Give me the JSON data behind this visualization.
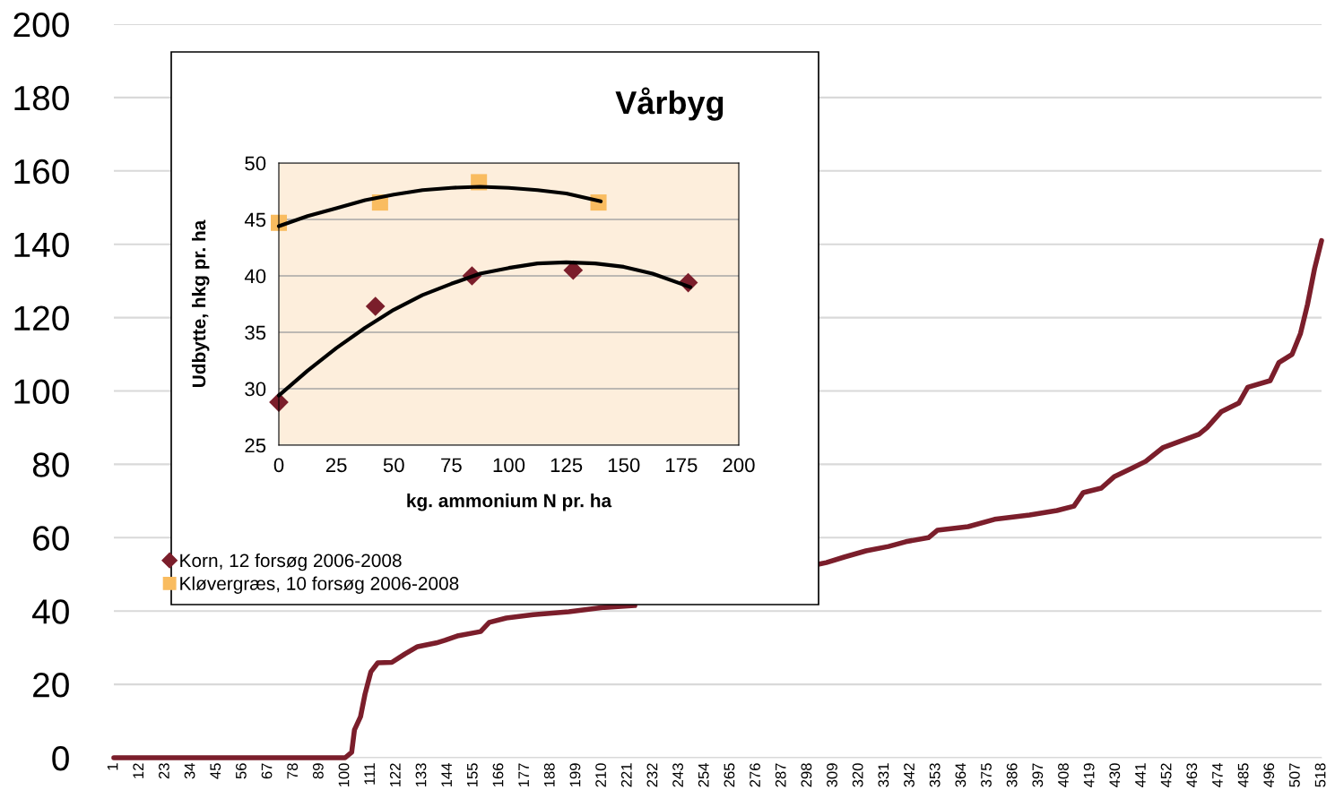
{
  "chart_data": [
    {
      "type": "line",
      "ylim": [
        0,
        200
      ],
      "yticks": [
        0,
        20,
        40,
        60,
        80,
        100,
        120,
        140,
        160,
        180,
        200
      ],
      "xlim": [
        1,
        518
      ],
      "xticks": [
        1,
        12,
        23,
        34,
        45,
        56,
        67,
        78,
        89,
        100,
        111,
        122,
        133,
        144,
        155,
        166,
        177,
        188,
        199,
        210,
        221,
        232,
        243,
        254,
        265,
        276,
        287,
        298,
        309,
        320,
        331,
        342,
        353,
        364,
        375,
        386,
        397,
        408,
        419,
        430,
        441,
        452,
        463,
        474,
        485,
        496,
        507,
        518
      ],
      "grid": "y",
      "legend": false,
      "series": [
        {
          "color": "#7b1e2b",
          "x": [
            1,
            100,
            102.8,
            104,
            106.6,
            108.5,
            111,
            114,
            120,
            125.6,
            131,
            139,
            142.7,
            148,
            158,
            161.7,
            169,
            180.6,
            195.8,
            211,
            224,
            226,
            303,
            306,
            313.6,
            323,
            332.6,
            340,
            349.7,
            353.5,
            366.7,
            378,
            393,
            404.7,
            412,
            416,
            423.7,
            429.4,
            437,
            442.7,
            450,
            458,
            465.5,
            469,
            475,
            482.6,
            486.4,
            496,
            499.7,
            505.4,
            509,
            512,
            515,
            518
          ],
          "values": [
            0,
            0,
            1.5,
            7.6,
            11.2,
            17.3,
            23.4,
            25.9,
            26,
            28.3,
            30.3,
            31.3,
            32,
            33.2,
            34.4,
            36.9,
            38.1,
            39,
            39.8,
            41,
            41.5,
            null,
            52.8,
            53.2,
            54.7,
            56.4,
            57.6,
            58.9,
            60,
            62,
            63,
            65,
            66.2,
            67.4,
            68.6,
            72.3,
            73.5,
            76.7,
            79,
            80.8,
            84.5,
            86.4,
            88.2,
            90,
            94.3,
            96.7,
            101,
            102.8,
            107.7,
            110,
            115.7,
            123.6,
            133.3,
            141
          ]
        }
      ]
    },
    {
      "type": "scatter",
      "title": "Vårbyg",
      "xlabel": "kg. ammonium N pr. ha",
      "ylabel": "Udbytte, hkg pr. ha",
      "xlim": [
        0,
        200
      ],
      "xticks": [
        0,
        25,
        50,
        75,
        100,
        125,
        150,
        175,
        200
      ],
      "ylim": [
        25,
        50
      ],
      "yticks": [
        25,
        30,
        35,
        40,
        45,
        50
      ],
      "grid": "y",
      "legend": "bottom",
      "series": [
        {
          "name": "Korn, 12 forsøg 2006-2008",
          "color": "#7b1e2b",
          "marker": "diamond",
          "x": [
            0,
            42,
            84,
            128,
            178
          ],
          "values": [
            28.8,
            37.3,
            40.0,
            40.5,
            39.4
          ]
        },
        {
          "name": "Kløvergræs, 10 forsøg 2006-2008",
          "color": "#f9bc60",
          "marker": "square",
          "x": [
            0,
            44,
            87,
            139
          ],
          "values": [
            44.7,
            46.5,
            48.3,
            46.5
          ]
        },
        {
          "type": "line",
          "color": "#000000",
          "x": [
            0,
            12.5,
            25,
            37.5,
            50,
            62.5,
            75,
            87.5,
            100,
            112.5,
            125,
            137.5,
            150,
            162.5,
            179
          ],
          "values": [
            29.4,
            31.6,
            33.6,
            35.4,
            37.0,
            38.3,
            39.3,
            40.2,
            40.7,
            41.1,
            41.2,
            41.1,
            40.8,
            40.2,
            39.0
          ]
        },
        {
          "type": "line",
          "color": "#000000",
          "x": [
            0,
            12.5,
            25,
            37.5,
            50,
            62.5,
            75,
            87.5,
            100,
            112.5,
            125,
            140
          ],
          "values": [
            44.4,
            45.3,
            46.0,
            46.7,
            47.2,
            47.6,
            47.8,
            47.9,
            47.8,
            47.6,
            47.3,
            46.6
          ]
        }
      ]
    }
  ]
}
